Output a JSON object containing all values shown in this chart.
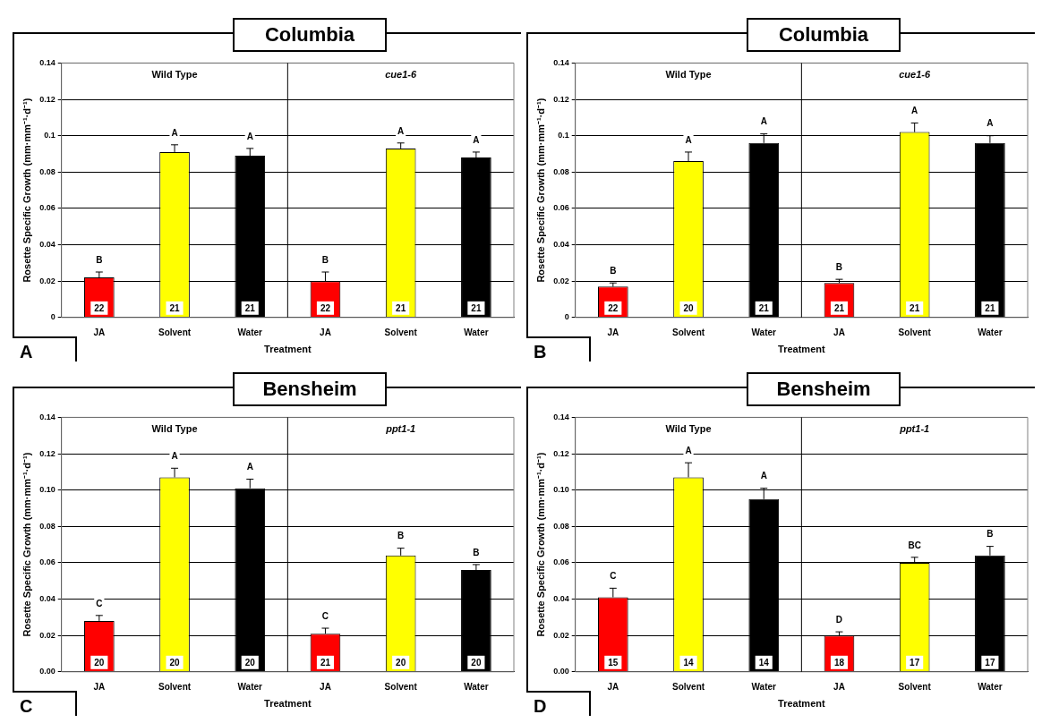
{
  "chart_data": [
    {
      "type": "bar",
      "title": "Columbia",
      "xlabel": "Treatment",
      "ylabel": "Rosette Specific Growth (mm·mm⁻¹·d⁻¹)",
      "categories": [
        "JA",
        "Solvent",
        "Water",
        "JA",
        "Solvent",
        "Water"
      ],
      "colors": [
        "#ff0000",
        "#ffff00",
        "#000000",
        "#ff0000",
        "#ffff00",
        "#000000"
      ],
      "values": [
        0.022,
        0.091,
        0.089,
        0.02,
        0.093,
        0.088
      ],
      "errors": [
        0.003,
        0.004,
        0.004,
        0.005,
        0.003,
        0.003
      ],
      "value_labels": [
        "B",
        "A",
        "A",
        "B",
        "A",
        "A"
      ],
      "annotations": [
        "Wild Type",
        "cue1-6",
        "A",
        "22",
        "21",
        "21",
        "22",
        "21",
        "21"
      ],
      "ylim": [
        0,
        0.14
      ],
      "yticks": [
        0,
        0.02,
        0.04,
        0.06,
        0.08,
        0.1,
        0.12,
        0.14
      ],
      "grid": "y",
      "legend": false
    },
    {
      "type": "bar",
      "title": "Columbia",
      "xlabel": "Treatment",
      "ylabel": "Rosette Specific Growth (mm·mm⁻¹·d⁻¹)",
      "categories": [
        "JA",
        "Solvent",
        "Water",
        "JA",
        "Solvent",
        "Water"
      ],
      "colors": [
        "#ff0000",
        "#ffff00",
        "#000000",
        "#ff0000",
        "#ffff00",
        "#000000"
      ],
      "values": [
        0.017,
        0.086,
        0.096,
        0.019,
        0.102,
        0.096
      ],
      "errors": [
        0.002,
        0.005,
        0.005,
        0.002,
        0.005,
        0.004
      ],
      "value_labels": [
        "B",
        "A",
        "A",
        "B",
        "A",
        "A"
      ],
      "annotations": [
        "Wild Type",
        "cue1-6",
        "B",
        "22",
        "20",
        "21",
        "21",
        "21",
        "21"
      ],
      "ylim": [
        0,
        0.14
      ],
      "yticks": [
        0,
        0.02,
        0.04,
        0.06,
        0.08,
        0.1,
        0.12,
        0.14
      ],
      "grid": "y",
      "legend": false
    },
    {
      "type": "bar",
      "title": "Bensheim",
      "xlabel": "Treatment",
      "ylabel": "Rosette Specific Growth (mm·mm⁻¹·d⁻¹)",
      "categories": [
        "JA",
        "Solvent",
        "Water",
        "JA",
        "Solvent",
        "Water"
      ],
      "colors": [
        "#ff0000",
        "#ffff00",
        "#000000",
        "#ff0000",
        "#ffff00",
        "#000000"
      ],
      "values": [
        0.028,
        0.107,
        0.101,
        0.021,
        0.064,
        0.056
      ],
      "errors": [
        0.003,
        0.005,
        0.005,
        0.003,
        0.004,
        0.003
      ],
      "value_labels": [
        "C",
        "A",
        "A",
        "C",
        "B",
        "B"
      ],
      "annotations": [
        "Wild Type",
        "ppt1-1",
        "C",
        "20",
        "20",
        "20",
        "21",
        "20",
        "20"
      ],
      "ylim": [
        0,
        0.14
      ],
      "yticks": [
        {
          "value": 0,
          "label": "0.00"
        },
        {
          "value": 0.02,
          "label": "0.02"
        },
        {
          "value": 0.04,
          "label": "0.04"
        },
        {
          "value": 0.06,
          "label": "0.06"
        },
        {
          "value": 0.08,
          "label": "0.08"
        },
        {
          "value": 0.1,
          "label": "0.10"
        },
        {
          "value": 0.12,
          "label": "0.12"
        },
        {
          "value": 0.14,
          "label": "0.14"
        }
      ],
      "grid": "y",
      "legend": false
    },
    {
      "type": "bar",
      "title": "Bensheim",
      "xlabel": "Treatment",
      "ylabel": "Rosette Specific Growth (mm·mm⁻¹·d⁻¹)",
      "categories": [
        "JA",
        "Solvent",
        "Water",
        "JA",
        "Solvent",
        "Water"
      ],
      "colors": [
        "#ff0000",
        "#ffff00",
        "#000000",
        "#ff0000",
        "#ffff00",
        "#000000"
      ],
      "values": [
        0.041,
        0.107,
        0.095,
        0.02,
        0.06,
        0.064
      ],
      "errors": [
        0.005,
        0.008,
        0.006,
        0.002,
        0.003,
        0.005
      ],
      "value_labels": [
        "C",
        "A",
        "A",
        "D",
        "BC",
        "B"
      ],
      "annotations": [
        "Wild Type",
        "ppt1-1",
        "D",
        "15",
        "14",
        "14",
        "18",
        "17",
        "17"
      ],
      "ylim": [
        0,
        0.14
      ],
      "yticks": [
        {
          "value": 0,
          "label": "0.00"
        },
        {
          "value": 0.02,
          "label": "0.02"
        },
        {
          "value": 0.04,
          "label": "0.04"
        },
        {
          "value": 0.06,
          "label": "0.06"
        },
        {
          "value": 0.08,
          "label": "0.08"
        },
        {
          "value": 0.1,
          "label": "0.10"
        },
        {
          "value": 0.12,
          "label": "0.12"
        },
        {
          "value": 0.14,
          "label": "0.14"
        }
      ],
      "grid": "y",
      "legend": false
    }
  ]
}
